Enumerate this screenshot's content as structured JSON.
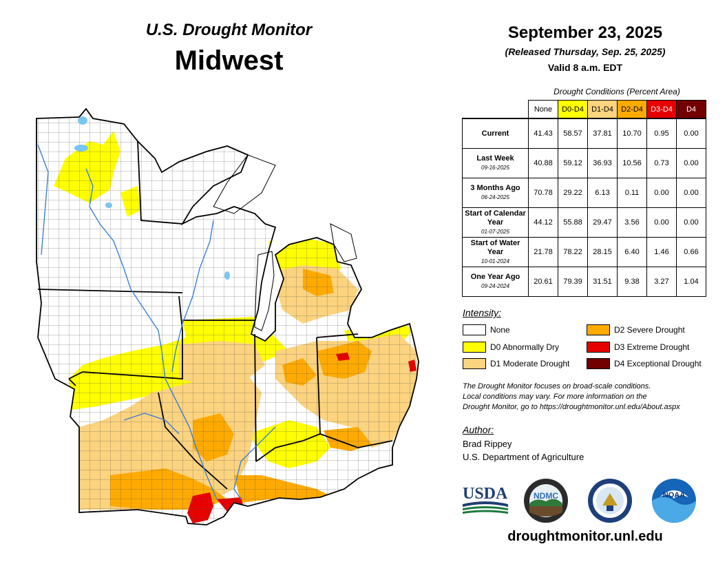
{
  "header": {
    "subtitle": "U.S. Drought Monitor",
    "region": "Midwest",
    "date": "September 23, 2025",
    "released": "(Released Thursday, Sep. 25, 2025)",
    "valid": "Valid 8 a.m. EDT"
  },
  "table": {
    "caption": "Drought Conditions (Percent Area)",
    "columns": [
      {
        "label": "None",
        "color": "#ffffff",
        "text_color": "#000000"
      },
      {
        "label": "D0-D4",
        "color": "#ffff00",
        "text_color": "#000000"
      },
      {
        "label": "D1-D4",
        "color": "#fcd37f",
        "text_color": "#000000"
      },
      {
        "label": "D2-D4",
        "color": "#ffaa00",
        "text_color": "#000000"
      },
      {
        "label": "D3-D4",
        "color": "#e60000",
        "text_color": "#ffffff"
      },
      {
        "label": "D4",
        "color": "#730000",
        "text_color": "#ffffff"
      }
    ],
    "rows": [
      {
        "label": "Current",
        "date": "",
        "values": [
          "41.43",
          "58.57",
          "37.81",
          "10.70",
          "0.95",
          "0.00"
        ]
      },
      {
        "label": "Last Week",
        "date": "09-16-2025",
        "values": [
          "40.88",
          "59.12",
          "36.93",
          "10.56",
          "0.73",
          "0.00"
        ]
      },
      {
        "label": "3 Months Ago",
        "date": "06-24-2025",
        "values": [
          "70.78",
          "29.22",
          "6.13",
          "0.11",
          "0.00",
          "0.00"
        ]
      },
      {
        "label": "Start of Calendar Year",
        "date": "01-07-2025",
        "values": [
          "44.12",
          "55.88",
          "29.47",
          "3.56",
          "0.00",
          "0.00"
        ]
      },
      {
        "label": "Start of Water Year",
        "date": "10-01-2024",
        "values": [
          "21.78",
          "78.22",
          "28.15",
          "6.40",
          "1.46",
          "0.66"
        ]
      },
      {
        "label": "One Year Ago",
        "date": "09-24-2024",
        "values": [
          "20.61",
          "79.39",
          "31.51",
          "9.38",
          "3.27",
          "1.04"
        ]
      }
    ]
  },
  "legend": {
    "title": "Intensity:",
    "items": [
      {
        "label": "None",
        "color": "#ffffff"
      },
      {
        "label": "D0 Abnormally Dry",
        "color": "#ffff00"
      },
      {
        "label": "D1 Moderate Drought",
        "color": "#fcd37f"
      },
      {
        "label": "D2 Severe Drought",
        "color": "#ffaa00"
      },
      {
        "label": "D3 Extreme Drought",
        "color": "#e60000"
      },
      {
        "label": "D4 Exceptional Drought",
        "color": "#730000"
      }
    ]
  },
  "disclaimer": {
    "line1": "The Drought Monitor focuses on broad-scale conditions.",
    "line2": "Local conditions may vary. For more information on the",
    "line3": "Drought Monitor, go to https://droughtmonitor.unl.edu/About.aspx"
  },
  "author": {
    "title": "Author:",
    "name": "Brad Rippey",
    "org": "U.S. Department of Agriculture"
  },
  "logos": {
    "usda": "USDA",
    "ndmc": "NDMC",
    "noaa": "NOAA"
  },
  "website": "droughtmonitor.unl.edu",
  "colors": {
    "none": "#ffffff",
    "d0": "#ffff00",
    "d1": "#fcd37f",
    "d2": "#ffaa00",
    "d3": "#e60000",
    "d4": "#730000",
    "water": "#79c6f0",
    "river": "#3a7fd6"
  }
}
